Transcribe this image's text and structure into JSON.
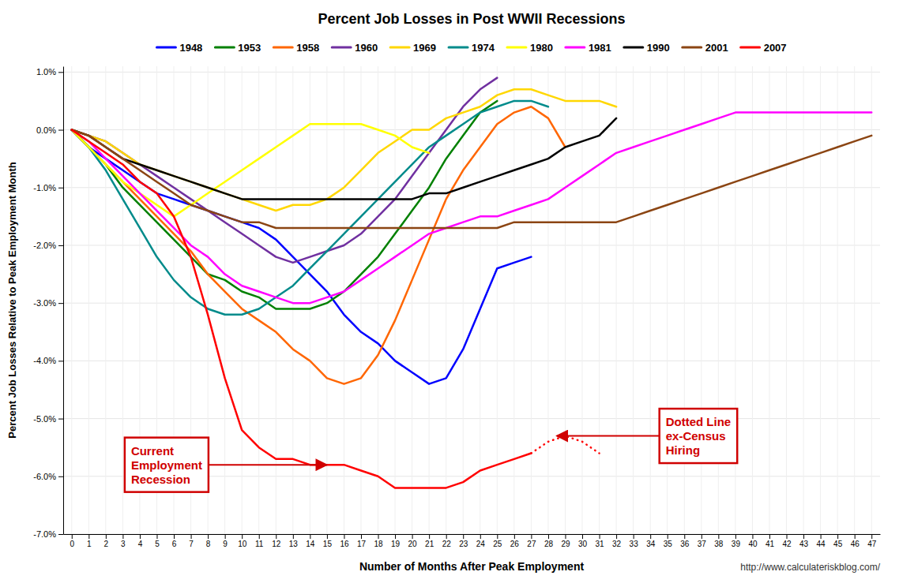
{
  "chart_data": {
    "type": "line",
    "title": "Percent Job Losses in Post WWII Recessions",
    "x_label": "Number of Months After Peak Employment",
    "y_label": "Percent Job Losses Relative to Peak Employment Month",
    "xlim": [
      -0.5,
      47.5
    ],
    "xticks": [
      0,
      1,
      2,
      3,
      4,
      5,
      6,
      7,
      8,
      9,
      10,
      11,
      12,
      13,
      14,
      15,
      16,
      17,
      18,
      19,
      20,
      21,
      22,
      23,
      24,
      25,
      26,
      27,
      28,
      29,
      30,
      31,
      32,
      33,
      34,
      35,
      36,
      37,
      38,
      39,
      40,
      41,
      42,
      43,
      44,
      45,
      46,
      47
    ],
    "ylim": [
      -0.07,
      0.011
    ],
    "yticks": [
      {
        "value": 0.01,
        "label": "1.0%"
      },
      {
        "value": 0.0,
        "label": "0.0%"
      },
      {
        "value": -0.01,
        "label": "-1.0%"
      },
      {
        "value": -0.02,
        "label": "-2.0%"
      },
      {
        "value": -0.03,
        "label": "-3.0%"
      },
      {
        "value": -0.04,
        "label": "-4.0%"
      },
      {
        "value": -0.05,
        "label": "-5.0%"
      },
      {
        "value": -0.06,
        "label": "-6.0%"
      },
      {
        "value": -0.07,
        "label": "-7.0%"
      }
    ],
    "grid": true,
    "series": [
      {
        "name": "1948",
        "color": "#0000FF",
        "x": [
          0,
          1,
          2,
          3,
          4,
          5,
          6,
          7,
          8,
          9,
          10,
          11,
          12,
          13,
          14,
          15,
          16,
          17,
          18,
          19,
          20,
          21,
          22,
          23,
          24,
          25,
          26,
          27
        ],
        "values": [
          0.0,
          -0.003,
          -0.005,
          -0.007,
          -0.009,
          -0.011,
          -0.012,
          -0.013,
          -0.014,
          -0.015,
          -0.016,
          -0.017,
          -0.019,
          -0.022,
          -0.025,
          -0.028,
          -0.032,
          -0.035,
          -0.037,
          -0.04,
          -0.042,
          -0.044,
          -0.043,
          -0.038,
          -0.031,
          -0.024,
          -0.023,
          -0.022
        ]
      },
      {
        "name": "1953",
        "color": "#008000",
        "x": [
          0,
          1,
          2,
          3,
          4,
          5,
          6,
          7,
          8,
          9,
          10,
          11,
          12,
          13,
          14,
          15,
          16,
          17,
          18,
          19,
          20,
          21,
          22,
          23,
          24,
          25
        ],
        "values": [
          0.0,
          -0.003,
          -0.006,
          -0.01,
          -0.013,
          -0.016,
          -0.019,
          -0.022,
          -0.025,
          -0.026,
          -0.028,
          -0.029,
          -0.031,
          -0.031,
          -0.031,
          -0.03,
          -0.028,
          -0.025,
          -0.022,
          -0.018,
          -0.014,
          -0.01,
          -0.005,
          -0.001,
          0.003,
          0.005
        ]
      },
      {
        "name": "1958",
        "color": "#FF6600",
        "x": [
          0,
          1,
          2,
          3,
          4,
          5,
          6,
          7,
          8,
          9,
          10,
          11,
          12,
          13,
          14,
          15,
          16,
          17,
          18,
          19,
          20,
          21,
          22,
          23,
          24,
          25,
          26,
          27,
          28,
          29
        ],
        "values": [
          0.0,
          -0.003,
          -0.006,
          -0.009,
          -0.012,
          -0.015,
          -0.018,
          -0.021,
          -0.025,
          -0.028,
          -0.031,
          -0.033,
          -0.035,
          -0.038,
          -0.04,
          -0.043,
          -0.044,
          -0.043,
          -0.039,
          -0.033,
          -0.026,
          -0.019,
          -0.012,
          -0.007,
          -0.003,
          0.001,
          0.003,
          0.004,
          0.002,
          -0.003
        ]
      },
      {
        "name": "1960",
        "color": "#7030A0",
        "x": [
          0,
          1,
          2,
          3,
          4,
          5,
          6,
          7,
          8,
          9,
          10,
          11,
          12,
          13,
          14,
          15,
          16,
          17,
          18,
          19,
          20,
          21,
          22,
          23,
          24,
          25
        ],
        "values": [
          0.0,
          -0.001,
          -0.002,
          -0.004,
          -0.006,
          -0.008,
          -0.01,
          -0.012,
          -0.014,
          -0.016,
          -0.018,
          -0.02,
          -0.022,
          -0.023,
          -0.022,
          -0.021,
          -0.02,
          -0.018,
          -0.015,
          -0.012,
          -0.008,
          -0.004,
          0.0,
          0.004,
          0.007,
          0.009
        ]
      },
      {
        "name": "1969",
        "color": "#FFD700",
        "x": [
          0,
          1,
          2,
          3,
          4,
          5,
          6,
          7,
          8,
          9,
          10,
          11,
          12,
          13,
          14,
          15,
          16,
          17,
          18,
          19,
          20,
          21,
          22,
          23,
          24,
          25,
          26,
          27,
          28,
          29,
          30,
          31,
          32
        ],
        "values": [
          0.0,
          -0.001,
          -0.002,
          -0.004,
          -0.006,
          -0.007,
          -0.008,
          -0.009,
          -0.01,
          -0.011,
          -0.012,
          -0.013,
          -0.014,
          -0.013,
          -0.013,
          -0.012,
          -0.01,
          -0.007,
          -0.004,
          -0.002,
          0.0,
          0.0,
          0.002,
          0.003,
          0.004,
          0.006,
          0.007,
          0.007,
          0.006,
          0.005,
          0.005,
          0.005,
          0.004
        ]
      },
      {
        "name": "1974",
        "color": "#008B8B",
        "x": [
          0,
          1,
          2,
          3,
          4,
          5,
          6,
          7,
          8,
          9,
          10,
          11,
          12,
          13,
          14,
          15,
          16,
          17,
          18,
          19,
          20,
          21,
          22,
          23,
          24,
          25,
          26,
          27,
          28
        ],
        "values": [
          0.0,
          -0.003,
          -0.007,
          -0.012,
          -0.017,
          -0.022,
          -0.026,
          -0.029,
          -0.031,
          -0.032,
          -0.032,
          -0.031,
          -0.029,
          -0.027,
          -0.024,
          -0.021,
          -0.018,
          -0.015,
          -0.012,
          -0.009,
          -0.006,
          -0.003,
          -0.001,
          0.001,
          0.003,
          0.004,
          0.005,
          0.005,
          0.004
        ]
      },
      {
        "name": "1980",
        "color": "#FFFF00",
        "x": [
          0,
          1,
          2,
          3,
          4,
          5,
          6,
          7,
          8,
          9,
          10,
          11,
          12,
          13,
          14,
          15,
          16,
          17,
          18,
          19,
          20,
          21
        ],
        "values": [
          0.0,
          -0.003,
          -0.006,
          -0.009,
          -0.011,
          -0.013,
          -0.015,
          -0.013,
          -0.011,
          -0.009,
          -0.007,
          -0.005,
          -0.003,
          -0.001,
          0.001,
          0.001,
          0.001,
          0.001,
          0.0,
          -0.001,
          -0.003,
          -0.004
        ]
      },
      {
        "name": "1981",
        "color": "#FF00FF",
        "x": [
          0,
          1,
          2,
          3,
          4,
          5,
          6,
          7,
          8,
          9,
          10,
          11,
          12,
          13,
          14,
          15,
          16,
          17,
          18,
          19,
          20,
          21,
          22,
          23,
          24,
          25,
          26,
          27,
          28,
          29,
          30,
          31,
          32,
          33,
          34,
          35,
          36,
          37,
          38,
          39,
          40,
          41,
          42,
          43,
          44,
          45,
          46,
          47
        ],
        "values": [
          0.0,
          -0.002,
          -0.005,
          -0.008,
          -0.011,
          -0.014,
          -0.017,
          -0.02,
          -0.022,
          -0.025,
          -0.027,
          -0.028,
          -0.029,
          -0.03,
          -0.03,
          -0.029,
          -0.028,
          -0.026,
          -0.024,
          -0.022,
          -0.02,
          -0.018,
          -0.017,
          -0.016,
          -0.015,
          -0.015,
          -0.014,
          -0.013,
          -0.012,
          -0.01,
          -0.008,
          -0.006,
          -0.004,
          -0.003,
          -0.002,
          -0.001,
          0.0,
          0.001,
          0.002,
          0.003,
          0.003,
          0.003,
          0.003,
          0.003,
          0.003,
          0.003,
          0.003,
          0.003
        ]
      },
      {
        "name": "1990",
        "color": "#000000",
        "x": [
          0,
          1,
          2,
          3,
          4,
          5,
          6,
          7,
          8,
          9,
          10,
          11,
          12,
          13,
          14,
          15,
          16,
          17,
          18,
          19,
          20,
          21,
          22,
          23,
          24,
          25,
          26,
          27,
          28,
          29,
          30,
          31,
          32
        ],
        "values": [
          0.0,
          -0.001,
          -0.003,
          -0.005,
          -0.006,
          -0.007,
          -0.008,
          -0.009,
          -0.01,
          -0.011,
          -0.012,
          -0.012,
          -0.012,
          -0.012,
          -0.012,
          -0.012,
          -0.012,
          -0.012,
          -0.012,
          -0.012,
          -0.012,
          -0.011,
          -0.011,
          -0.01,
          -0.009,
          -0.008,
          -0.007,
          -0.006,
          -0.005,
          -0.003,
          -0.002,
          -0.001,
          0.002
        ]
      },
      {
        "name": "2001",
        "color": "#8B4513",
        "x": [
          0,
          1,
          2,
          3,
          4,
          5,
          6,
          7,
          8,
          9,
          10,
          11,
          12,
          13,
          14,
          15,
          16,
          17,
          18,
          19,
          20,
          21,
          22,
          23,
          24,
          25,
          26,
          27,
          28,
          29,
          30,
          31,
          32,
          33,
          34,
          35,
          36,
          37,
          38,
          39,
          40,
          41,
          42,
          43,
          44,
          45,
          46,
          47
        ],
        "values": [
          0.0,
          -0.001,
          -0.003,
          -0.005,
          -0.007,
          -0.009,
          -0.011,
          -0.013,
          -0.014,
          -0.015,
          -0.016,
          -0.016,
          -0.017,
          -0.017,
          -0.017,
          -0.017,
          -0.017,
          -0.017,
          -0.017,
          -0.017,
          -0.017,
          -0.017,
          -0.017,
          -0.017,
          -0.017,
          -0.017,
          -0.016,
          -0.016,
          -0.016,
          -0.016,
          -0.016,
          -0.016,
          -0.016,
          -0.015,
          -0.014,
          -0.013,
          -0.012,
          -0.011,
          -0.01,
          -0.009,
          -0.008,
          -0.007,
          -0.006,
          -0.005,
          -0.004,
          -0.003,
          -0.002,
          -0.001
        ]
      },
      {
        "name": "2007",
        "color": "#FF0000",
        "x": [
          0,
          1,
          2,
          3,
          4,
          5,
          6,
          7,
          8,
          9,
          10,
          11,
          12,
          13,
          14,
          15,
          16,
          17,
          18,
          19,
          20,
          21,
          22,
          23,
          24,
          25,
          26,
          27
        ],
        "values": [
          0.0,
          -0.002,
          -0.004,
          -0.006,
          -0.009,
          -0.011,
          -0.015,
          -0.022,
          -0.032,
          -0.043,
          -0.052,
          -0.055,
          -0.057,
          -0.057,
          -0.058,
          -0.058,
          -0.058,
          -0.059,
          -0.06,
          -0.062,
          -0.062,
          -0.062,
          -0.062,
          -0.061,
          -0.059,
          -0.058,
          -0.057,
          -0.056
        ]
      },
      {
        "name": "2007",
        "color": "#FF0000",
        "line_style": "dotted",
        "x": [
          27,
          28,
          29,
          30,
          31
        ],
        "values": [
          -0.056,
          -0.054,
          -0.053,
          -0.054,
          -0.056
        ]
      }
    ],
    "annotations": [
      {
        "text": "Current\nEmployment\nRecession",
        "x": 15,
        "y": -0.058
      },
      {
        "text": "Dotted Line\nex-Census\nHiring",
        "x": 28.5,
        "y": -0.053
      },
      {
        "text": "http://www.calculateriskblog.com/"
      }
    ]
  }
}
